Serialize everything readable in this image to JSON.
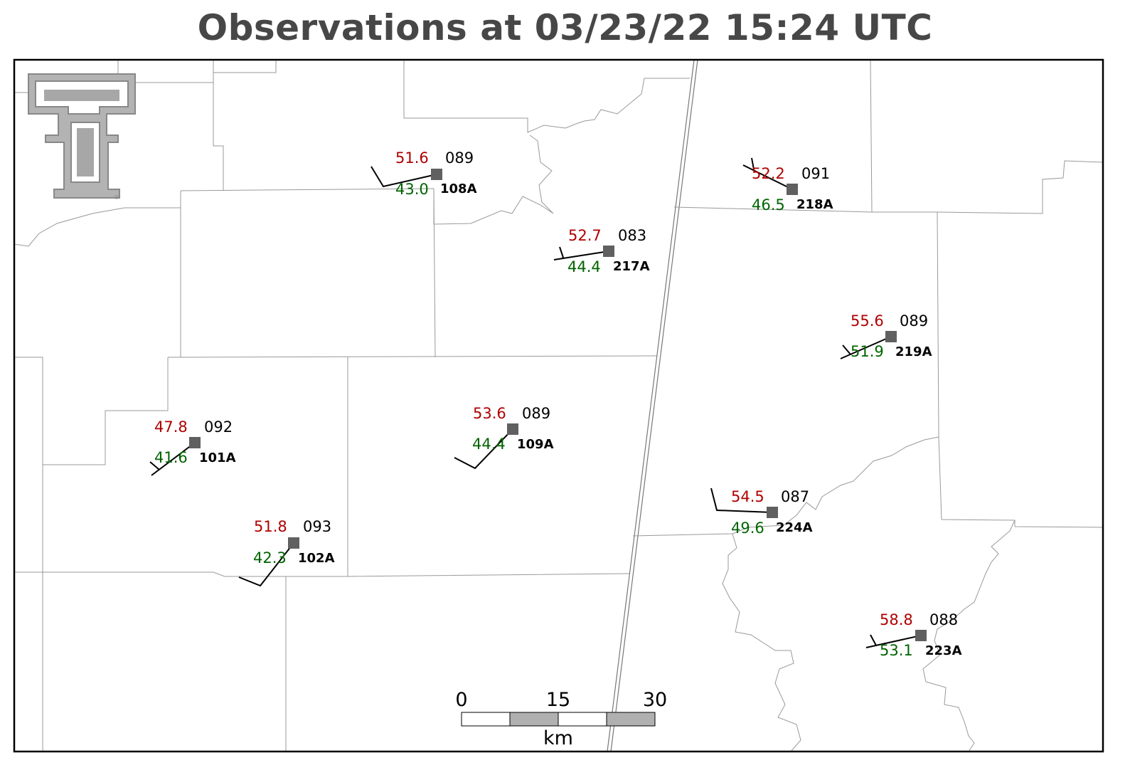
{
  "title": "Observations at 03/23/22 15:24 UTC",
  "colors": {
    "temperature": "#b00000",
    "dewpoint": "#006400",
    "station_marker": "#606060",
    "boundaries": "#888888",
    "title": "#474747"
  },
  "logo": {
    "icon": "double-t-logo-icon",
    "registered_mark": "®"
  },
  "stations": [
    {
      "id": "108A",
      "temp": "51.6",
      "dew": "43.0",
      "dir": "089"
    },
    {
      "id": "218A",
      "temp": "52.2",
      "dew": "46.5",
      "dir": "091"
    },
    {
      "id": "217A",
      "temp": "52.7",
      "dew": "44.4",
      "dir": "083"
    },
    {
      "id": "219A",
      "temp": "55.6",
      "dew": "51.9",
      "dir": "089"
    },
    {
      "id": "101A",
      "temp": "47.8",
      "dew": "41.6",
      "dir": "092"
    },
    {
      "id": "109A",
      "temp": "53.6",
      "dew": "44.4",
      "dir": "089"
    },
    {
      "id": "102A",
      "temp": "51.8",
      "dew": "42.3",
      "dir": "093"
    },
    {
      "id": "224A",
      "temp": "54.5",
      "dew": "49.6",
      "dir": "087"
    },
    {
      "id": "223A",
      "temp": "58.8",
      "dew": "53.1",
      "dir": "088"
    }
  ],
  "scale_bar": {
    "labels": [
      "0",
      "15",
      "30"
    ],
    "unit": "km"
  }
}
